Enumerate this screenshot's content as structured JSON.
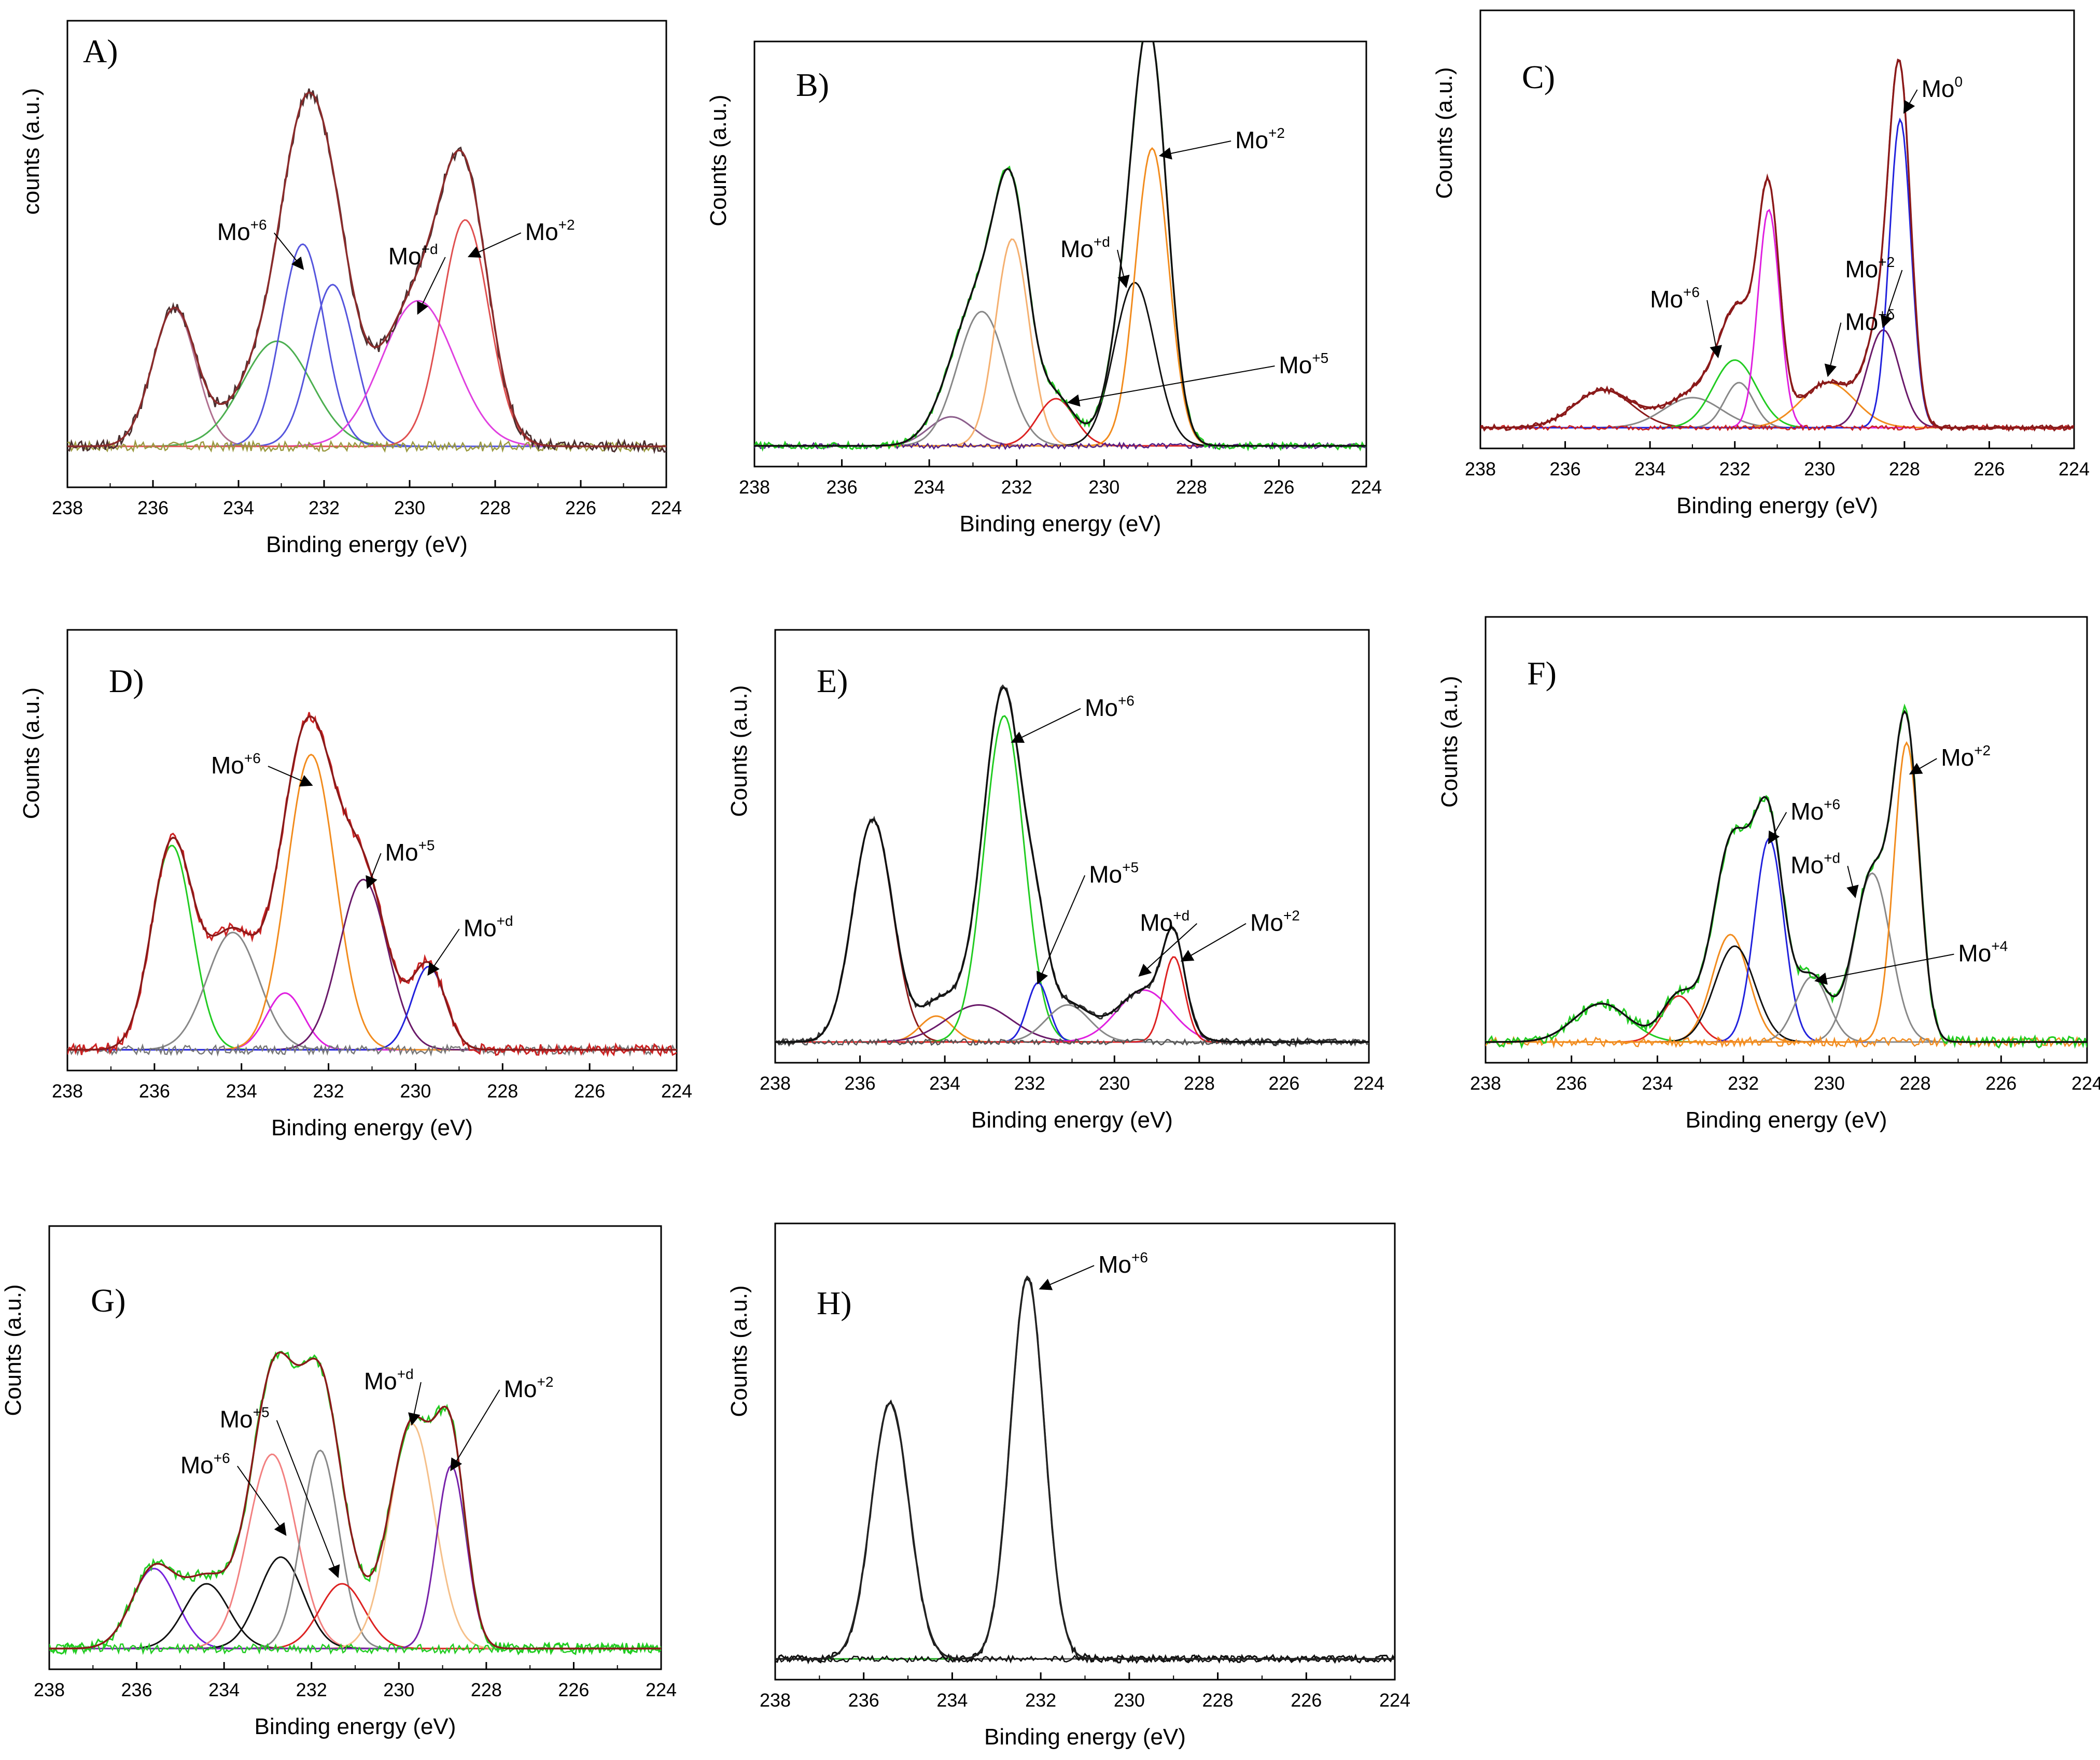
{
  "figure": {
    "xaxis_ticks": [
      238,
      236,
      234,
      232,
      230,
      228,
      226,
      224
    ]
  },
  "chart_data": [
    {
      "id": "A",
      "type": "line",
      "letter": "A)",
      "xlabel": "Binding energy (eV)",
      "ylabel": "counts (a.u.)",
      "xlim": [
        238,
        224
      ],
      "ylim": [
        0,
        1.0
      ],
      "baseline": 0.05,
      "noise_level": 0.012,
      "peaks": [
        {
          "center": 235.5,
          "height": 0.34,
          "fwhm": 1.2,
          "color": "#b07090"
        },
        {
          "center": 233.1,
          "height": 0.26,
          "fwhm": 1.9,
          "color": "#4caf50"
        },
        {
          "center": 232.5,
          "height": 0.5,
          "fwhm": 1.2,
          "color": "#5555dd"
        },
        {
          "center": 231.8,
          "height": 0.4,
          "fwhm": 1.2,
          "color": "#5555dd"
        },
        {
          "center": 229.8,
          "height": 0.36,
          "fwhm": 2.0,
          "color": "#e040e0"
        },
        {
          "center": 228.7,
          "height": 0.56,
          "fwhm": 1.3,
          "color": "#e05050"
        }
      ],
      "envelope_color": "#8b2b2b",
      "raw_color": "#4a3030",
      "residual_color": "#9a9a40",
      "annotations": [
        {
          "text": "Mo",
          "sup": "+6",
          "x": 234.5,
          "y": 0.56,
          "arrow_to": [
            232.5,
            0.49
          ]
        },
        {
          "text": "Mo",
          "sup": "+d",
          "x": 230.5,
          "y": 0.5,
          "arrow_to": [
            229.8,
            0.38
          ]
        },
        {
          "text": "Mo",
          "sup": "+2",
          "x": 227.3,
          "y": 0.56,
          "arrow_to": [
            228.6,
            0.52
          ]
        }
      ]
    },
    {
      "id": "B",
      "type": "line",
      "letter": "B)",
      "xlabel": "Binding energy (eV)",
      "ylabel": "Counts (a.u.)",
      "xlim": [
        238,
        224
      ],
      "ylim": [
        0,
        1.0
      ],
      "baseline": 0.0,
      "noise_level": 0.008,
      "peaks": [
        {
          "center": 233.5,
          "height": 0.08,
          "fwhm": 1.2,
          "color": "#8b5e8b"
        },
        {
          "center": 232.8,
          "height": 0.37,
          "fwhm": 1.3,
          "color": "#888888"
        },
        {
          "center": 232.1,
          "height": 0.57,
          "fwhm": 0.9,
          "color": "#f5b070"
        },
        {
          "center": 231.1,
          "height": 0.13,
          "fwhm": 1.0,
          "color": "#dd2222"
        },
        {
          "center": 229.3,
          "height": 0.45,
          "fwhm": 1.1,
          "color": "#111111"
        },
        {
          "center": 228.9,
          "height": 0.82,
          "fwhm": 0.9,
          "color": "#f28c1e"
        }
      ],
      "envelope_color": "#111111",
      "raw_color": "#22cc22",
      "residual_color": "#552288",
      "annotations": [
        {
          "text": "Mo",
          "sup": "+2",
          "x": 227.0,
          "y": 0.82,
          "arrow_to": [
            228.7,
            0.8
          ]
        },
        {
          "text": "Mo",
          "sup": "+d",
          "x": 231.0,
          "y": 0.52,
          "arrow_to": [
            229.5,
            0.44
          ]
        },
        {
          "text": "Mo",
          "sup": "+5",
          "x": 226.0,
          "y": 0.2,
          "arrow_to": [
            230.8,
            0.12
          ]
        }
      ]
    },
    {
      "id": "C",
      "type": "line",
      "letter": "C)",
      "xlabel": "Binding energy (eV)",
      "ylabel": "Counts (a.u.)",
      "xlim": [
        238,
        224
      ],
      "ylim": [
        0,
        1.0
      ],
      "baseline": 0.0,
      "noise_level": 0.006,
      "peaks": [
        {
          "center": 235.1,
          "height": 0.1,
          "fwhm": 1.6,
          "color": "#8b1a1a"
        },
        {
          "center": 233.0,
          "height": 0.08,
          "fwhm": 1.6,
          "color": "#888888"
        },
        {
          "center": 232.0,
          "height": 0.18,
          "fwhm": 1.2,
          "color": "#22cc22"
        },
        {
          "center": 231.9,
          "height": 0.12,
          "fwhm": 0.8,
          "color": "#888888"
        },
        {
          "center": 231.2,
          "height": 0.58,
          "fwhm": 0.6,
          "color": "#e020e0"
        },
        {
          "center": 229.8,
          "height": 0.12,
          "fwhm": 1.5,
          "color": "#f28c1e"
        },
        {
          "center": 228.5,
          "height": 0.26,
          "fwhm": 0.9,
          "color": "#6a1a6a"
        },
        {
          "center": 228.1,
          "height": 0.82,
          "fwhm": 0.6,
          "color": "#2222dd"
        }
      ],
      "envelope_color": "#8b1a1a",
      "raw_color": "#8b1a1a",
      "residual_color": "#cc2222",
      "annotations": [
        {
          "text": "Mo",
          "sup": "0",
          "x": 227.6,
          "y": 0.88,
          "arrow_to": [
            228.0,
            0.84
          ]
        },
        {
          "text": "Mo",
          "sup": "+2",
          "x": 229.4,
          "y": 0.4,
          "arrow_to": [
            228.5,
            0.27
          ]
        },
        {
          "text": "Mo",
          "sup": "+δ",
          "x": 229.4,
          "y": 0.26,
          "arrow_to": [
            229.8,
            0.14
          ]
        },
        {
          "text": "Mo",
          "sup": "+6",
          "x": 234.0,
          "y": 0.32,
          "arrow_to": [
            232.4,
            0.19
          ]
        }
      ]
    },
    {
      "id": "D",
      "type": "line",
      "letter": "D)",
      "xlabel": "Binding energy (eV)",
      "ylabel": "Counts (a.u.)",
      "xlim": [
        238,
        224
      ],
      "ylim": [
        0,
        1.0
      ],
      "baseline": 0.0,
      "noise_level": 0.012,
      "peaks": [
        {
          "center": 235.6,
          "height": 0.54,
          "fwhm": 1.1,
          "color": "#22cc22"
        },
        {
          "center": 234.2,
          "height": 0.31,
          "fwhm": 1.4,
          "color": "#888888"
        },
        {
          "center": 233.0,
          "height": 0.15,
          "fwhm": 1.0,
          "color": "#e020e0"
        },
        {
          "center": 232.4,
          "height": 0.78,
          "fwhm": 1.3,
          "color": "#f28c1e"
        },
        {
          "center": 231.2,
          "height": 0.45,
          "fwhm": 1.3,
          "color": "#6a1a6a"
        },
        {
          "center": 229.7,
          "height": 0.22,
          "fwhm": 0.9,
          "color": "#2222dd"
        }
      ],
      "envelope_color": "#8b1a1a",
      "raw_color": "#cc2222",
      "residual_color": "#777777",
      "annotations": [
        {
          "text": "Mo",
          "sup": "+6",
          "x": 234.7,
          "y": 0.73,
          "arrow_to": [
            232.4,
            0.7
          ]
        },
        {
          "text": "Mo",
          "sup": "+5",
          "x": 230.7,
          "y": 0.5,
          "arrow_to": [
            231.1,
            0.43
          ]
        },
        {
          "text": "Mo",
          "sup": "+d",
          "x": 228.9,
          "y": 0.3,
          "arrow_to": [
            229.7,
            0.2
          ]
        }
      ]
    },
    {
      "id": "E",
      "type": "line",
      "letter": "E)",
      "xlabel": "Binding energy (eV)",
      "ylabel": "Counts (a.u.)",
      "xlim": [
        238,
        224
      ],
      "ylim": [
        0,
        1.0
      ],
      "baseline": 0.0,
      "noise_level": 0.008,
      "peaks": [
        {
          "center": 235.7,
          "height": 0.6,
          "fwhm": 1.1,
          "color": "#8b1a1a"
        },
        {
          "center": 234.2,
          "height": 0.07,
          "fwhm": 0.9,
          "color": "#f28c1e"
        },
        {
          "center": 233.2,
          "height": 0.1,
          "fwhm": 1.8,
          "color": "#6a1a6a"
        },
        {
          "center": 232.6,
          "height": 0.88,
          "fwhm": 1.1,
          "color": "#22cc22"
        },
        {
          "center": 231.8,
          "height": 0.16,
          "fwhm": 0.6,
          "color": "#2222dd"
        },
        {
          "center": 231.1,
          "height": 0.1,
          "fwhm": 1.2,
          "color": "#888888"
        },
        {
          "center": 229.3,
          "height": 0.14,
          "fwhm": 1.5,
          "color": "#e020e0"
        },
        {
          "center": 228.6,
          "height": 0.23,
          "fwhm": 0.6,
          "color": "#dd2222"
        }
      ],
      "envelope_color": "#111111",
      "raw_color": "#333333",
      "residual_color": "#555555",
      "annotations": [
        {
          "text": "Mo",
          "sup": "+6",
          "x": 230.7,
          "y": 0.88,
          "arrow_to": [
            232.4,
            0.81
          ]
        },
        {
          "text": "Mo",
          "sup": "+5",
          "x": 230.6,
          "y": 0.43,
          "arrow_to": [
            231.8,
            0.16
          ]
        },
        {
          "text": "Mo",
          "sup": "+d",
          "x": 229.4,
          "y": 0.3,
          "arrow_to": [
            229.4,
            0.18
          ]
        },
        {
          "text": "Mo",
          "sup": "+2",
          "x": 226.8,
          "y": 0.3,
          "arrow_to": [
            228.4,
            0.22
          ]
        }
      ]
    },
    {
      "id": "F",
      "type": "line",
      "letter": "F)",
      "xlabel": "Binding energy (eV)",
      "ylabel": "Counts (a.u.)",
      "xlim": [
        238,
        224
      ],
      "ylim": [
        0,
        1.0
      ],
      "baseline": 0.0,
      "noise_level": 0.012,
      "peaks": [
        {
          "center": 235.3,
          "height": 0.1,
          "fwhm": 1.5,
          "color": "#22cc22"
        },
        {
          "center": 233.5,
          "height": 0.12,
          "fwhm": 0.9,
          "color": "#dd2222"
        },
        {
          "center": 232.3,
          "height": 0.28,
          "fwhm": 1.0,
          "color": "#f28c1e"
        },
        {
          "center": 232.2,
          "height": 0.25,
          "fwhm": 1.1,
          "color": "#111111"
        },
        {
          "center": 231.4,
          "height": 0.53,
          "fwhm": 0.8,
          "color": "#2222dd"
        },
        {
          "center": 230.4,
          "height": 0.17,
          "fwhm": 0.9,
          "color": "#888888"
        },
        {
          "center": 229.0,
          "height": 0.44,
          "fwhm": 1.0,
          "color": "#888888"
        },
        {
          "center": 228.2,
          "height": 0.78,
          "fwhm": 0.7,
          "color": "#f28c1e"
        }
      ],
      "envelope_color": "#111111",
      "raw_color": "#22cc22",
      "residual_color": "#f28c1e",
      "annotations": [
        {
          "text": "Mo",
          "sup": "+2",
          "x": 227.4,
          "y": 0.72,
          "arrow_to": [
            228.1,
            0.7
          ]
        },
        {
          "text": "Mo",
          "sup": "+6",
          "x": 230.9,
          "y": 0.58,
          "arrow_to": [
            231.4,
            0.52
          ]
        },
        {
          "text": "Mo",
          "sup": "+d",
          "x": 230.9,
          "y": 0.44,
          "arrow_to": [
            229.4,
            0.38
          ]
        },
        {
          "text": "Mo",
          "sup": "+4",
          "x": 227.0,
          "y": 0.21,
          "arrow_to": [
            230.3,
            0.16
          ]
        }
      ]
    },
    {
      "id": "G",
      "type": "line",
      "letter": "G)",
      "xlabel": "Binding energy (eV)",
      "ylabel": "Counts (a.u.)",
      "xlim": [
        238,
        224
      ],
      "ylim": [
        0,
        1.0
      ],
      "baseline": 0.0,
      "noise_level": 0.012,
      "peaks": [
        {
          "center": 235.6,
          "height": 0.21,
          "fwhm": 1.2,
          "color": "#7722dd"
        },
        {
          "center": 234.4,
          "height": 0.17,
          "fwhm": 1.2,
          "color": "#111111"
        },
        {
          "center": 232.9,
          "height": 0.51,
          "fwhm": 1.3,
          "color": "#f28080"
        },
        {
          "center": 232.7,
          "height": 0.24,
          "fwhm": 1.2,
          "color": "#111111"
        },
        {
          "center": 231.8,
          "height": 0.52,
          "fwhm": 1.0,
          "color": "#888888"
        },
        {
          "center": 231.3,
          "height": 0.17,
          "fwhm": 1.2,
          "color": "#dd2222"
        },
        {
          "center": 229.7,
          "height": 0.59,
          "fwhm": 1.2,
          "color": "#f5c08a"
        },
        {
          "center": 228.8,
          "height": 0.48,
          "fwhm": 0.8,
          "color": "#7722aa"
        }
      ],
      "envelope_color": "#8b1a1a",
      "raw_color": "#22cc22",
      "residual_color": "#22cc22",
      "annotations": [
        {
          "text": "Mo",
          "sup": "+d",
          "x": 230.8,
          "y": 0.68,
          "arrow_to": [
            229.7,
            0.59
          ]
        },
        {
          "text": "Mo",
          "sup": "+2",
          "x": 227.6,
          "y": 0.66,
          "arrow_to": [
            228.8,
            0.47
          ]
        },
        {
          "text": "Mo",
          "sup": "+5",
          "x": 234.1,
          "y": 0.58,
          "arrow_to": [
            231.4,
            0.19
          ]
        },
        {
          "text": "Mo",
          "sup": "+6",
          "x": 235.0,
          "y": 0.46,
          "arrow_to": [
            232.6,
            0.3
          ]
        }
      ]
    },
    {
      "id": "H",
      "type": "line",
      "letter": "H)",
      "xlabel": "Binding energy (eV)",
      "ylabel": "Counts (a.u.)",
      "xlim": [
        238,
        224
      ],
      "ylim": [
        0,
        1.0
      ],
      "baseline": 0.0,
      "noise_level": 0.008,
      "peaks": [
        {
          "center": 235.4,
          "height": 0.65,
          "fwhm": 1.0,
          "color": "#555555"
        },
        {
          "center": 232.3,
          "height": 0.97,
          "fwhm": 0.9,
          "color": "#22aa22"
        }
      ],
      "envelope_color": "#222222",
      "raw_color": "#111111",
      "residual_color": "#111111",
      "annotations": [
        {
          "text": "Mo",
          "sup": "+6",
          "x": 230.7,
          "y": 0.98,
          "arrow_to": [
            232.0,
            0.94
          ]
        }
      ]
    }
  ]
}
